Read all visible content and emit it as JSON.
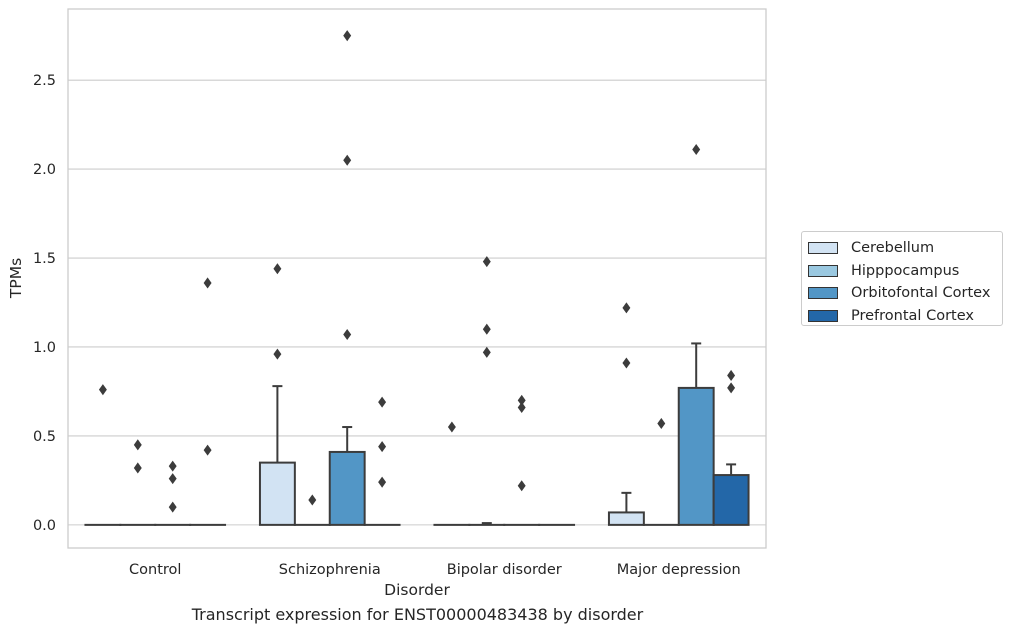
{
  "chart_data": {
    "type": "bar",
    "title": "",
    "xlabel": "Disorder",
    "ylabel": "TPMs",
    "caption": "Transcript expression for ENST00000483438 by disorder",
    "categories": [
      "Control",
      "Schizophrenia",
      "Bipolar disorder",
      "Major depression"
    ],
    "ylim": [
      -0.13,
      2.9
    ],
    "yticks": [
      "0.0",
      "0.5",
      "1.0",
      "1.5",
      "2.0",
      "2.5"
    ],
    "grid": true,
    "legend_position": "right",
    "series": [
      {
        "name": "Cerebellum",
        "color": "#d2e3f3",
        "values": [
          0.0,
          0.35,
          0.0,
          0.07
        ],
        "error_upper": [
          0.0,
          0.78,
          0.0,
          0.18
        ],
        "outliers": [
          [
            0.76
          ],
          [
            1.44,
            0.96
          ],
          [
            0.55
          ],
          [
            1.22,
            0.91
          ]
        ]
      },
      {
        "name": "Hipppocampus",
        "color": "#9ac8e0",
        "values": [
          0.0,
          0.0,
          0.0,
          0.0
        ],
        "error_upper": [
          0.0,
          0.0,
          0.01,
          0.0
        ],
        "outliers": [
          [
            0.45,
            0.32
          ],
          [
            0.14
          ],
          [
            1.48,
            1.1,
            0.97
          ],
          [
            0.57
          ]
        ]
      },
      {
        "name": "Orbitofontal Cortex",
        "color": "#5296c6",
        "values": [
          0.0,
          0.41,
          0.0,
          0.77
        ],
        "error_upper": [
          0.0,
          0.55,
          0.0,
          1.02
        ],
        "outliers": [
          [
            0.33,
            0.26,
            0.1
          ],
          [
            2.75,
            2.05,
            1.07
          ],
          [
            0.7,
            0.66,
            0.22
          ],
          [
            2.11
          ]
        ]
      },
      {
        "name": "Prefrontal Cortex",
        "color": "#2367a8",
        "values": [
          0.0,
          0.0,
          0.0,
          0.28
        ],
        "error_upper": [
          0.0,
          0.0,
          0.0,
          0.34
        ],
        "outliers": [
          [
            1.36,
            0.42
          ],
          [
            0.69,
            0.44,
            0.24
          ],
          [],
          [
            0.84,
            0.77
          ]
        ]
      }
    ]
  }
}
